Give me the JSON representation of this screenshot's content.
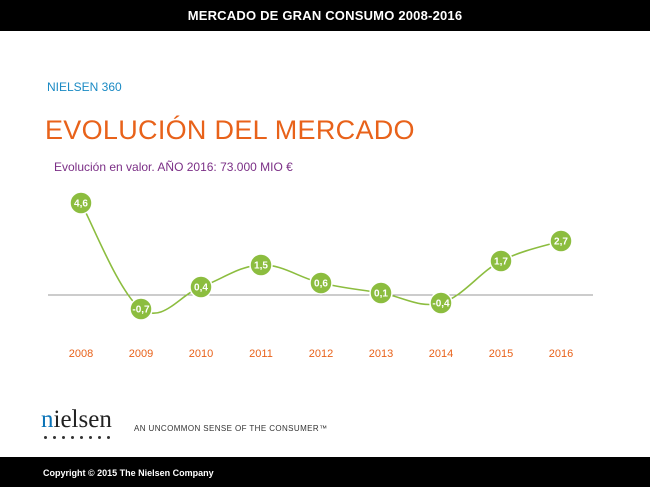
{
  "header": {
    "title": "MERCADO DE GRAN CONSUMO 2008-2016"
  },
  "brand_label": "NIELSEN 360",
  "page_title": "EVOLUCIÓN DEL MERCADO",
  "chart_subtitle": "Evolución en valor. AÑO 2016: 73.000 MIO €",
  "chart_data": {
    "type": "line",
    "title": "",
    "subtitle": "Evolución en valor. AÑO 2016: 73.000 MIO €",
    "categories": [
      "2008",
      "2009",
      "2010",
      "2011",
      "2012",
      "2013",
      "2014",
      "2015",
      "2016"
    ],
    "values": [
      4.6,
      -0.7,
      0.4,
      1.5,
      0.6,
      0.1,
      -0.4,
      1.7,
      2.7
    ],
    "value_labels": [
      "4,6",
      "-0,7",
      "0,4",
      "1,5",
      "0,6",
      "0,1",
      "-0,4",
      "1,7",
      "2,7"
    ],
    "xlabel": "",
    "ylabel": "",
    "ylim": [
      -1.2,
      5.2
    ],
    "grid": false,
    "baseline": 0,
    "colors": {
      "line": "#8cbd3f",
      "marker": "#8cbd3f",
      "baseline": "#999999",
      "category_label": "#e8621a"
    }
  },
  "logo": {
    "text_first": "n",
    "text_rest": "ielsen"
  },
  "tagline": "AN UNCOMMON SENSE OF THE CONSUMER™",
  "footer": {
    "copyright": "Copyright © 2015 The Nielsen Company"
  }
}
